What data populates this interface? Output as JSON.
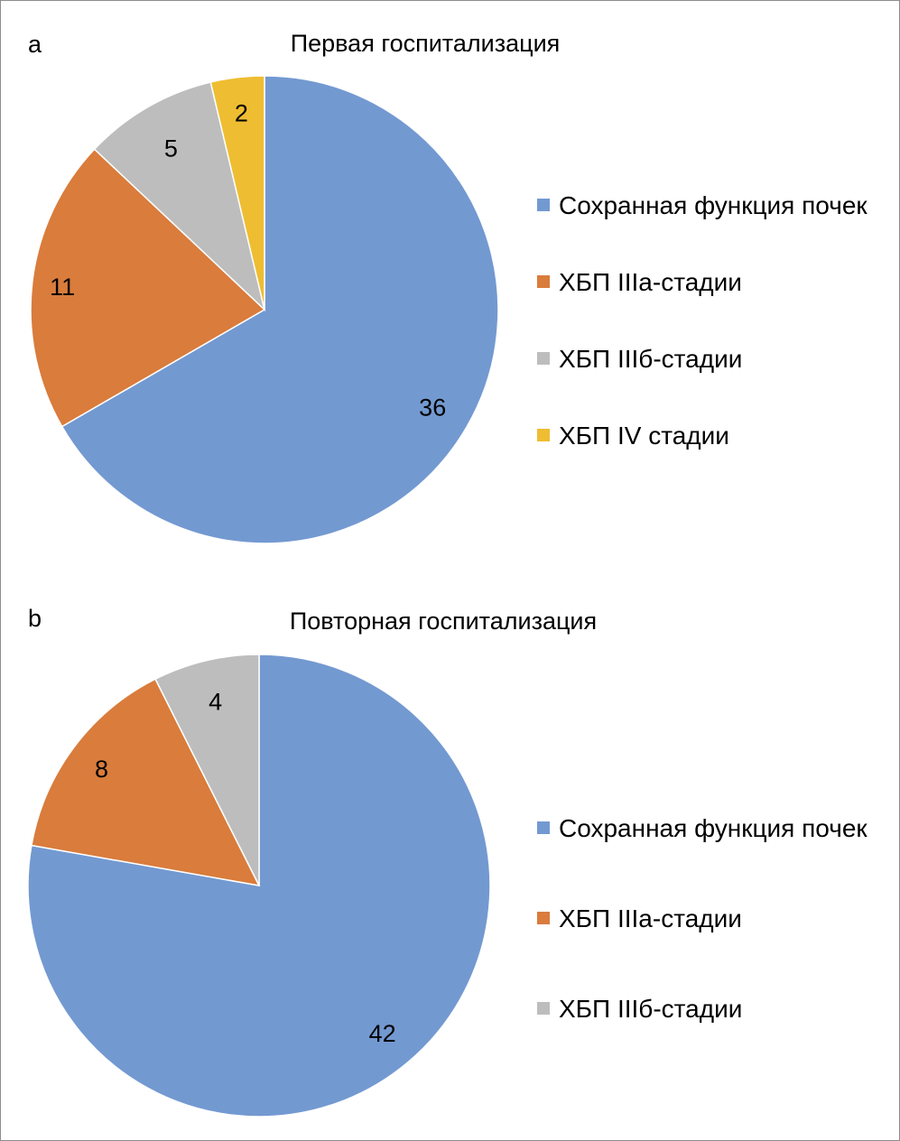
{
  "chart_data": [
    {
      "type": "pie",
      "panel": "a",
      "title": "Первая госпитализация",
      "categories": [
        "Сохранная функция почек",
        "ХБП IIIа-стадии",
        "ХБП IIIб-стадии",
        "ХБП IV стадии"
      ],
      "values": [
        36,
        11,
        5,
        2
      ],
      "colors": [
        "#7399d1",
        "#d97c3c",
        "#bdbdbd",
        "#eebd32"
      ],
      "legend_position": "right",
      "start_angle": "12 o'clock",
      "direction": "clockwise"
    },
    {
      "type": "pie",
      "panel": "b",
      "title": "Повторная госпитализация",
      "categories": [
        "Сохранная функция почек",
        "ХБП IIIа-стадии",
        "ХБП IIIб-стадии"
      ],
      "values": [
        42,
        8,
        4
      ],
      "colors": [
        "#7399d1",
        "#d97c3c",
        "#bdbdbd"
      ],
      "legend_position": "right",
      "start_angle": "12 o'clock",
      "direction": "clockwise"
    }
  ]
}
